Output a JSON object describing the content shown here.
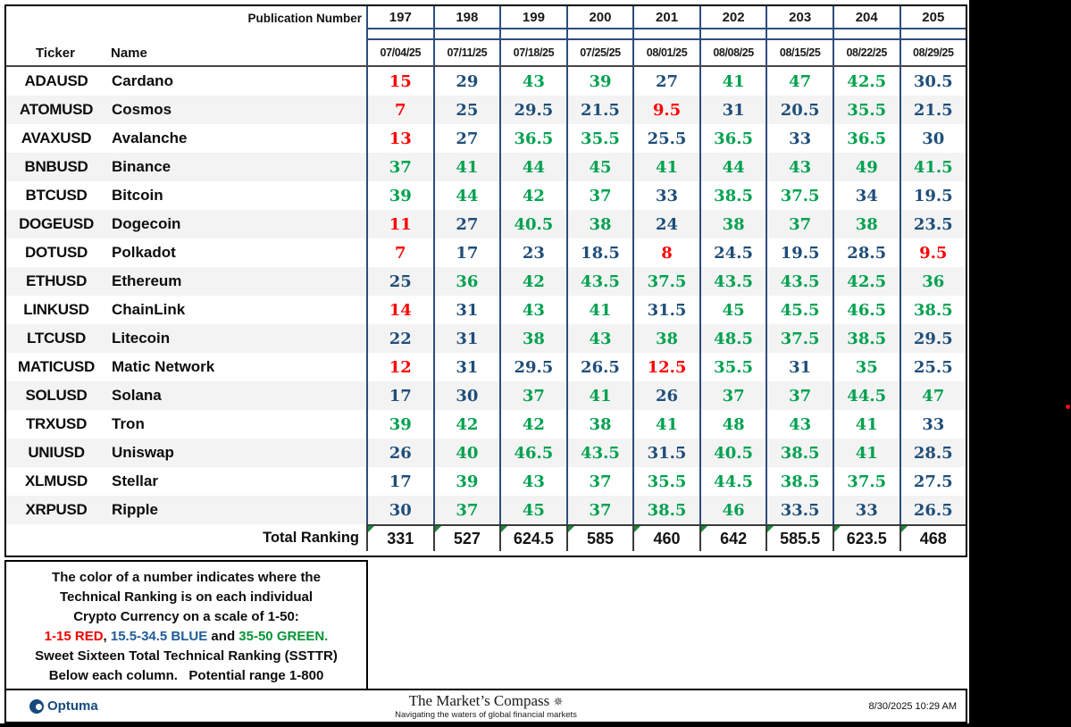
{
  "header": {
    "publication_label": "Publication Number",
    "ticker_label": "Ticker",
    "name_label": "Name"
  },
  "chart_data": {
    "type": "table",
    "columns": [
      "197",
      "198",
      "199",
      "200",
      "201",
      "202",
      "203",
      "204",
      "205"
    ],
    "column_dates": [
      "07/04/25",
      "07/11/25",
      "07/18/25",
      "07/25/25",
      "08/01/25",
      "08/08/25",
      "08/15/25",
      "08/22/25",
      "08/29/25"
    ],
    "rows": [
      {
        "ticker": "ADAUSD",
        "name": "Cardano",
        "values": [
          15,
          29,
          43,
          39,
          27,
          41,
          47,
          42.5,
          30.5
        ]
      },
      {
        "ticker": "ATOMUSD",
        "name": "Cosmos",
        "values": [
          7,
          25,
          29.5,
          21.5,
          9.5,
          31,
          20.5,
          35.5,
          21.5
        ]
      },
      {
        "ticker": "AVAXUSD",
        "name": "Avalanche",
        "values": [
          13,
          27,
          36.5,
          35.5,
          25.5,
          36.5,
          33,
          36.5,
          30
        ]
      },
      {
        "ticker": "BNBUSD",
        "name": "Binance",
        "values": [
          37,
          41,
          44,
          45,
          41,
          44,
          43,
          49,
          41.5
        ]
      },
      {
        "ticker": "BTCUSD",
        "name": "Bitcoin",
        "values": [
          39,
          44,
          42,
          37,
          33,
          38.5,
          37.5,
          34,
          19.5
        ]
      },
      {
        "ticker": "DOGEUSD",
        "name": "Dogecoin",
        "values": [
          11,
          27,
          40.5,
          38,
          24,
          38,
          37,
          38,
          23.5
        ]
      },
      {
        "ticker": "DOTUSD",
        "name": "Polkadot",
        "values": [
          7,
          17,
          23,
          18.5,
          8,
          24.5,
          19.5,
          28.5,
          9.5
        ]
      },
      {
        "ticker": "ETHUSD",
        "name": "Ethereum",
        "values": [
          25,
          36,
          42,
          43.5,
          37.5,
          43.5,
          43.5,
          42.5,
          36
        ]
      },
      {
        "ticker": "LINKUSD",
        "name": "ChainLink",
        "values": [
          14,
          31,
          43,
          41,
          31.5,
          45,
          45.5,
          46.5,
          38.5
        ]
      },
      {
        "ticker": "LTCUSD",
        "name": "Litecoin",
        "values": [
          22,
          31,
          38,
          43,
          38,
          48.5,
          37.5,
          38.5,
          29.5
        ]
      },
      {
        "ticker": "MATICUSD",
        "name": "Matic Network",
        "values": [
          12,
          31,
          29.5,
          26.5,
          12.5,
          35.5,
          31,
          35,
          25.5
        ]
      },
      {
        "ticker": "SOLUSD",
        "name": "Solana",
        "values": [
          17,
          30,
          37,
          41,
          26,
          37,
          37,
          44.5,
          47
        ]
      },
      {
        "ticker": "TRXUSD",
        "name": "Tron",
        "values": [
          39,
          42,
          42,
          38,
          41,
          48,
          43,
          41,
          33
        ]
      },
      {
        "ticker": "UNIUSD",
        "name": "Uniswap",
        "values": [
          26,
          40,
          46.5,
          43.5,
          31.5,
          40.5,
          38.5,
          41,
          28.5
        ]
      },
      {
        "ticker": "XLMUSD",
        "name": "Stellar",
        "values": [
          17,
          39,
          43,
          37,
          35.5,
          44.5,
          38.5,
          37.5,
          27.5
        ]
      },
      {
        "ticker": "XRPUSD",
        "name": "Ripple",
        "values": [
          30,
          37,
          45,
          37,
          38.5,
          46,
          33.5,
          33,
          26.5
        ]
      }
    ],
    "totals": [
      331,
      527,
      624.5,
      585,
      460,
      642,
      585.5,
      623.5,
      468
    ],
    "value_color_rule": {
      "red": "1-15",
      "blue": "15.5-34.5",
      "green": "35-50"
    }
  },
  "total": {
    "label": "Total Ranking"
  },
  "note": {
    "line1": "The color of a number indicates where the",
    "line2": "Technical Ranking is on each individual",
    "line3": "Crypto Currency on a scale of 1-50:",
    "line4_red": "1-15 RED",
    "line4_sep": ", ",
    "line4_blue": "15.5-34.5 BLUE",
    "line4_and": " and ",
    "line4_green": "35-50 GREEN.",
    "line5": "Sweet Sixteen Total Technical Ranking (SSTTR)",
    "line6": "Below each column.   Potential range 1-800"
  },
  "footer": {
    "optuma": "Optuma",
    "brand": "The Market’s Compass",
    "compass_glyph": "✵",
    "tagline": "Navigating the waters of global financial markets",
    "timestamp": "8/30/2025 10:29 AM"
  },
  "colors": {
    "red": "#FF0000",
    "blue": "#1F4E79",
    "green": "#00A14F"
  }
}
